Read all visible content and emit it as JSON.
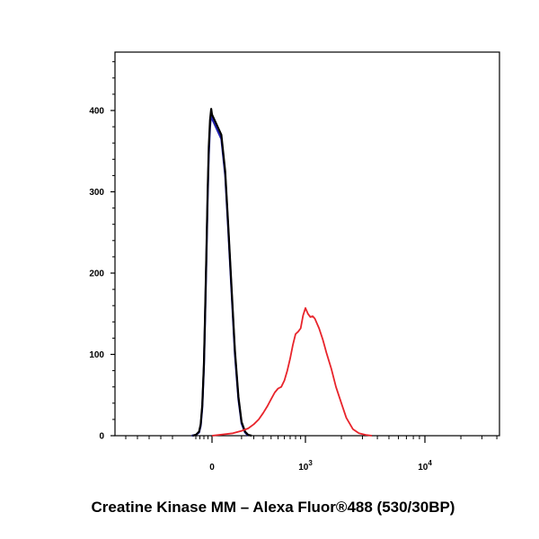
{
  "chart_data": {
    "type": "line",
    "xlabel": "Creatine Kinase MM – Alexa Fluor®488 (530/30BP)",
    "ylabel": "",
    "ylim": [
      0,
      460
    ],
    "y_ticks": [
      {
        "value": 0,
        "label": "0"
      },
      {
        "value": 100,
        "label": "100"
      },
      {
        "value": 200,
        "label": "200"
      },
      {
        "value": 300,
        "label": "300"
      },
      {
        "value": 400,
        "label": "400"
      }
    ],
    "x_ticks": [
      {
        "value": 0,
        "base": "0",
        "exp": ""
      },
      {
        "value": 1000,
        "base": "10",
        "exp": "3"
      },
      {
        "value": 10000,
        "base": "10",
        "exp": "4"
      }
    ],
    "x_scale": "biexponential",
    "xlim": [
      -250,
      60000
    ],
    "grid": false,
    "series": [
      {
        "color": "#1f1fb0",
        "x": [
          -250,
          -200,
          -160,
          -140,
          -120,
          -100,
          -85,
          -70,
          -55,
          -40,
          -25,
          -10,
          0,
          10,
          20,
          30,
          45,
          60,
          80,
          100,
          125,
          150
        ],
        "y": [
          0,
          1,
          4,
          12,
          35,
          85,
          145,
          215,
          290,
          345,
          380,
          395,
          390,
          365,
          320,
          255,
          170,
          100,
          45,
          15,
          4,
          0
        ]
      },
      {
        "color": "#000000",
        "x": [
          -240,
          -200,
          -160,
          -140,
          -120,
          -100,
          -85,
          -70,
          -55,
          -40,
          -25,
          -10,
          0,
          10,
          20,
          30,
          45,
          60,
          80,
          100,
          125,
          150,
          180
        ],
        "y": [
          0,
          1,
          5,
          14,
          38,
          88,
          150,
          222,
          298,
          355,
          388,
          402,
          395,
          370,
          325,
          260,
          175,
          105,
          48,
          17,
          5,
          1,
          0
        ]
      },
      {
        "color": "#e8242b",
        "x": [
          0,
          50,
          100,
          150,
          200,
          250,
          300,
          350,
          400,
          450,
          500,
          550,
          600,
          650,
          700,
          750,
          800,
          850,
          900,
          950,
          1000,
          1050,
          1100,
          1150,
          1200,
          1300,
          1400,
          1500,
          1650,
          1800,
          2000,
          2200,
          2500,
          2800,
          3200,
          3600
        ],
        "y": [
          0,
          3,
          6,
          9,
          14,
          20,
          28,
          36,
          45,
          53,
          58,
          60,
          68,
          80,
          95,
          112,
          125,
          128,
          132,
          148,
          157,
          150,
          146,
          147,
          144,
          132,
          118,
          102,
          82,
          60,
          40,
          22,
          8,
          3,
          1,
          0
        ]
      }
    ]
  }
}
